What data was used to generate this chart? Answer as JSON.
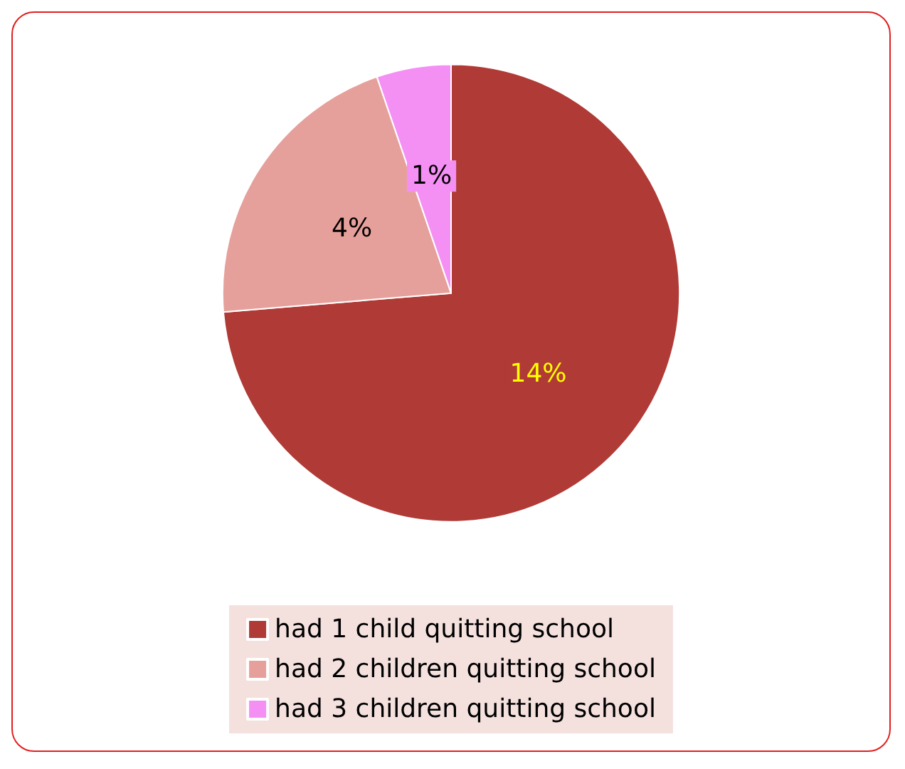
{
  "chart_data": {
    "type": "pie",
    "categories": [
      "had 1 child quitting school",
      "had 2 children quitting school",
      "had 3 children quitting school"
    ],
    "values": [
      14,
      4,
      1
    ],
    "colors": [
      "#b03a36",
      "#e6a09b",
      "#f490f4"
    ],
    "value_labels": [
      "14%",
      "4%",
      "1%"
    ],
    "legend": "bottom"
  }
}
